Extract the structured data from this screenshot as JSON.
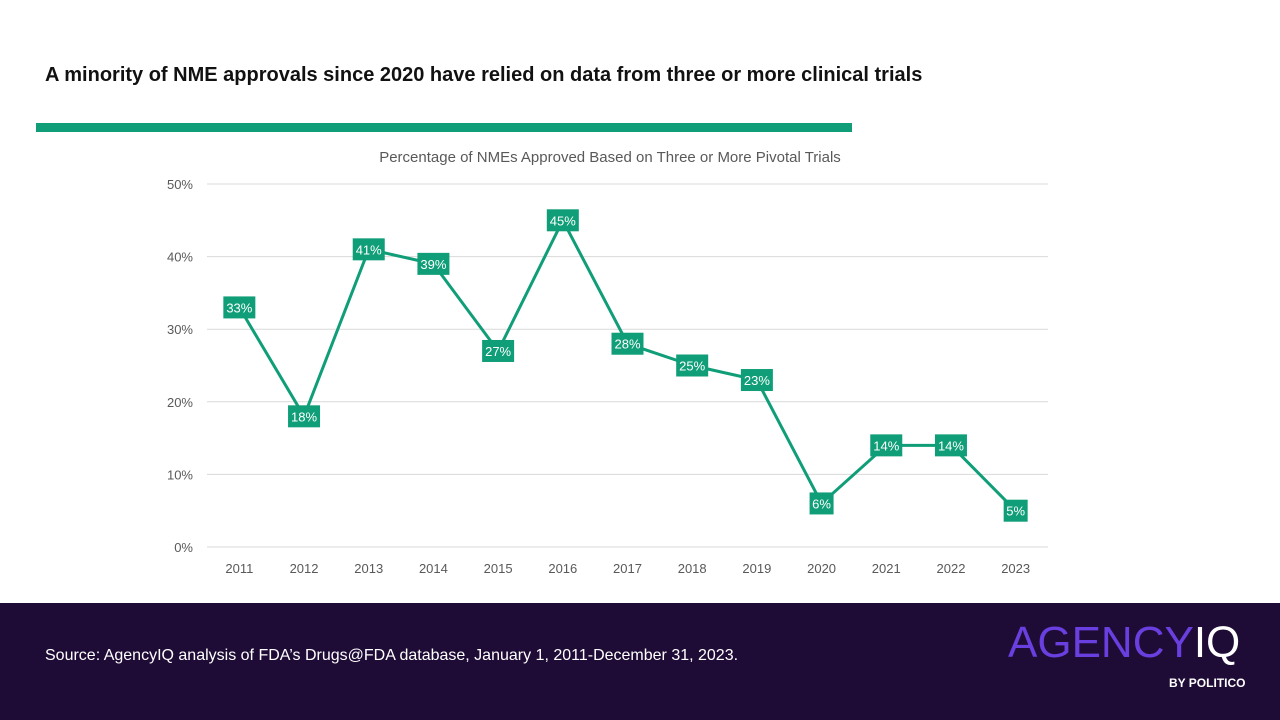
{
  "headline": "A minority of NME approvals since 2020 have relied on data from three or more clinical trials",
  "colors": {
    "accent": "#0f9e78",
    "footer_bg": "#1f0c36",
    "logo_purple": "#6a3fe0",
    "grid": "#d9d9d9",
    "axis_text": "#595959"
  },
  "chart_data": {
    "type": "line",
    "title": "Percentage of NMEs Approved Based on Three or More Pivotal Trials",
    "xlabel": "",
    "ylabel": "",
    "categories": [
      "2011",
      "2012",
      "2013",
      "2014",
      "2015",
      "2016",
      "2017",
      "2018",
      "2019",
      "2020",
      "2021",
      "2022",
      "2023"
    ],
    "series": [
      {
        "name": "Percentage of NMEs Approved Based on Three or More Pivotal Trials",
        "values": [
          33,
          18,
          41,
          39,
          27,
          45,
          28,
          25,
          23,
          6,
          14,
          14,
          5
        ],
        "data_labels": [
          "33%",
          "18%",
          "41%",
          "39%",
          "27%",
          "45%",
          "28%",
          "25%",
          "23%",
          "6%",
          "14%",
          "14%",
          "5%"
        ]
      }
    ],
    "y_ticks": [
      0,
      10,
      20,
      30,
      40,
      50
    ],
    "y_tick_labels": [
      "0%",
      "10%",
      "20%",
      "30%",
      "40%",
      "50%"
    ],
    "ylim": [
      0,
      50
    ],
    "grid": true,
    "legend": "none"
  },
  "footer": {
    "source": "Source: AgencyIQ analysis of FDA’s Drugs@FDA database, January 1, 2011-December 31, 2023."
  },
  "logo": {
    "main_word": "AGENCY",
    "main_suffix": "IQ",
    "byline": "BY POLITICO"
  }
}
